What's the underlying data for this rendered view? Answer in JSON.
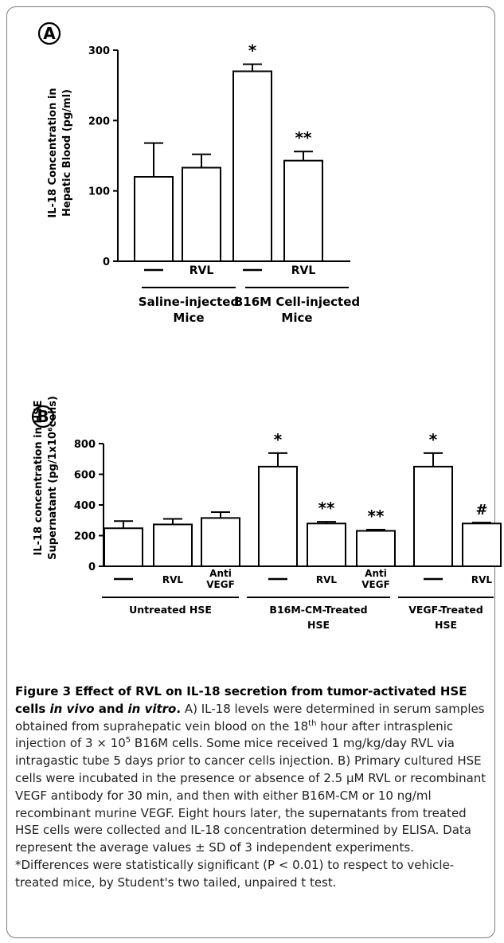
{
  "chart_data": [
    {
      "type": "bar",
      "panel_label": "A",
      "ylabel_line1": "IL-18 Concentration in",
      "ylabel_line2": "Hepatic Blood (pg/ml)",
      "ylim": [
        0,
        300
      ],
      "yticks": [
        0,
        100,
        200,
        300
      ],
      "categories": [
        "—",
        "RVL",
        "—",
        "RVL"
      ],
      "values": [
        120,
        133,
        270,
        143
      ],
      "errors": [
        48,
        19,
        10,
        13
      ],
      "annotations": [
        "",
        "",
        "*",
        "**"
      ],
      "groups": [
        {
          "label_line1": "Saline-injected",
          "label_line2": "Mice",
          "from": 0,
          "to": 1
        },
        {
          "label_line1": "B16M Cell-injected",
          "label_line2": "Mice",
          "from": 2,
          "to": 3
        }
      ]
    },
    {
      "type": "bar",
      "panel_label": "B",
      "ylabel_line1": "IL-18 concentration in HSE",
      "ylabel_line2": "Supernatant (pg/1x10⁶cells)",
      "ylim": [
        0,
        800
      ],
      "yticks": [
        0,
        200,
        400,
        600,
        800
      ],
      "categories": [
        "—",
        "RVL",
        "Anti VEGF",
        "—",
        "RVL",
        "Anti VEGF",
        "—",
        "RVL"
      ],
      "values": [
        248,
        273,
        315,
        650,
        279,
        231,
        650,
        279
      ],
      "errors": [
        47,
        36,
        38,
        88,
        11,
        8,
        88,
        6
      ],
      "annotations": [
        "",
        "",
        "",
        "*",
        "**",
        "**",
        "*",
        "#"
      ],
      "groups": [
        {
          "label_line1": "Untreated HSE",
          "label_line2": "",
          "from": 0,
          "to": 2
        },
        {
          "label_line1": "B16M-CM-Treated",
          "label_line2": "HSE",
          "from": 3,
          "to": 5
        },
        {
          "label_line1": "VEGF-Treated",
          "label_line2": "HSE",
          "from": 6,
          "to": 7
        }
      ]
    }
  ],
  "caption": {
    "title_a": "Figure 3 Effect of RVL on IL-18 secretion from tumor-activated HSE cells ",
    "title_em1": "in vivo",
    "title_b": " and ",
    "title_em2": "in vitro",
    "title_end": ".",
    "body_a": " A) IL-18 levels were determined in serum samples obtained from suprahepatic vein blood on the 18",
    "body_sup1": "th",
    "body_b": " hour after intrasplenic injection of 3 × 10",
    "body_sup2": "5",
    "body_c": " B16M cells. Some mice received 1 mg/kg/day RVL via intragastic tube 5 days prior to cancer cells injection. B) Primary cultured HSE cells were incubated in the presence or absence of 2.5 μM RVL or recombinant VEGF antibody for 30 min, and then with either B16M-CM or 10 ng/ml recombinant murine VEGF. Eight hours later, the supernatants from treated HSE cells were collected and IL-18 concentration determined by ELISA. Data represent the average values ± SD of 3 independent experiments. *Differences were statistically significant (P < 0.01) to respect to vehicle-treated mice, by Student's two tailed, unpaired t test."
  }
}
